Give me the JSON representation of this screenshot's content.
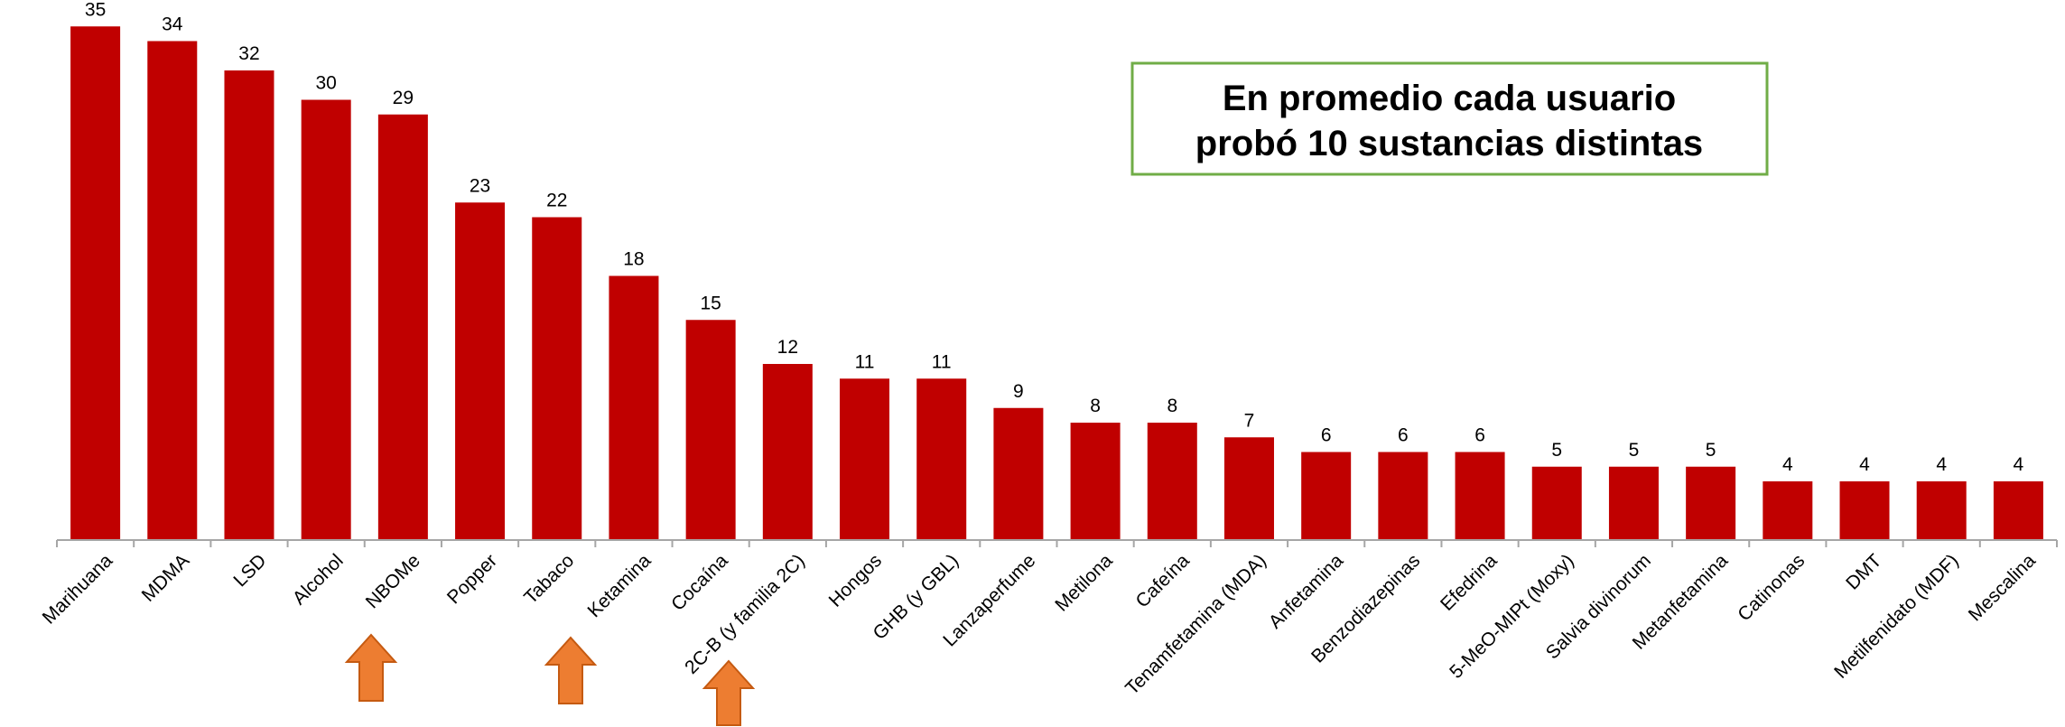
{
  "chart_data": {
    "type": "bar",
    "categories": [
      "Marihuana",
      "MDMA",
      "LSD",
      "Alcohol",
      "NBOMe",
      "Popper",
      "Tabaco",
      "Ketamina",
      "Cocaína",
      "2C-B (y familia 2C)",
      "Hongos",
      "GHB (y GBL)",
      "Lanzaperfume",
      "Metilona",
      "Cafeína",
      "Tenamfetamina (MDA)",
      "Anfetamina",
      "Benzodiazepinas",
      "Efedrina",
      "5-MeO-MIPt (Moxy)",
      "Salvia divinorum",
      "Metanfetamina",
      "Catinonas",
      "DMT",
      "Metilfenidato (MDF)",
      "Mescalina"
    ],
    "values": [
      35,
      34,
      32,
      30,
      29,
      23,
      22,
      18,
      15,
      12,
      11,
      11,
      9,
      8,
      8,
      7,
      6,
      6,
      6,
      5,
      5,
      5,
      4,
      4,
      4,
      4
    ],
    "color": "#c00000",
    "annotation": [
      "En promedio cada usuario",
      "probó 10 sustancias distintas"
    ]
  }
}
